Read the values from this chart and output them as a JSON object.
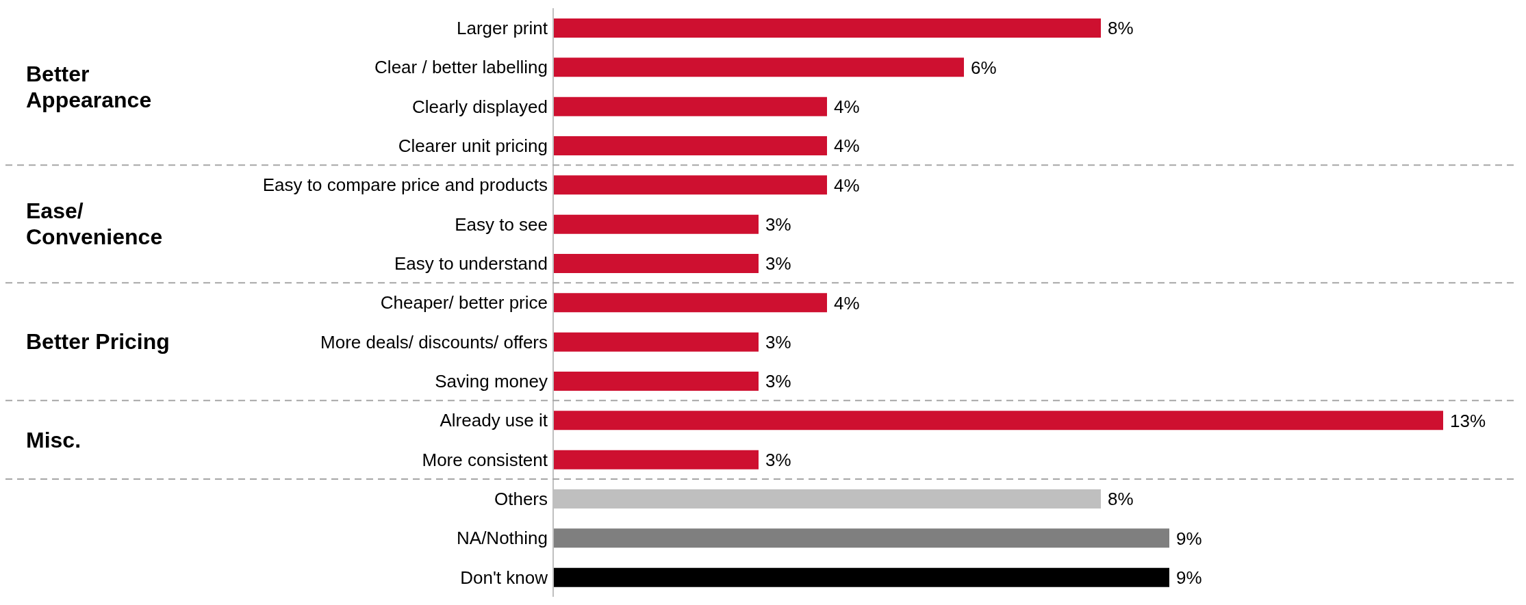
{
  "chart_data": {
    "type": "bar",
    "orientation": "horizontal",
    "categories": [
      "Larger print",
      "Clear / better labelling",
      "Clearly displayed",
      "Clearer unit pricing",
      "Easy to compare price and products",
      "Easy to see",
      "Easy to understand",
      "Cheaper/ better price",
      "More deals/ discounts/ offers",
      "Saving money",
      "Already use it",
      "More consistent",
      "Others",
      "NA/Nothing",
      "Don't know"
    ],
    "values": [
      8,
      6,
      4,
      4,
      4,
      3,
      3,
      4,
      3,
      3,
      13,
      3,
      8,
      9,
      9
    ],
    "colors": [
      "#ce1030",
      "#ce1030",
      "#ce1030",
      "#ce1030",
      "#ce1030",
      "#ce1030",
      "#ce1030",
      "#ce1030",
      "#ce1030",
      "#ce1030",
      "#ce1030",
      "#ce1030",
      "#bfbfbf",
      "#7f7f7f",
      "#000000"
    ],
    "value_labels": [
      "8%",
      "6%",
      "4%",
      "4%",
      "4%",
      "3%",
      "3%",
      "4%",
      "3%",
      "3%",
      "13%",
      "3%",
      "8%",
      "9%",
      "9%"
    ],
    "annotations": [
      "Better Appearance",
      "Ease/ Convenience",
      "Better Pricing",
      "Misc."
    ]
  }
}
